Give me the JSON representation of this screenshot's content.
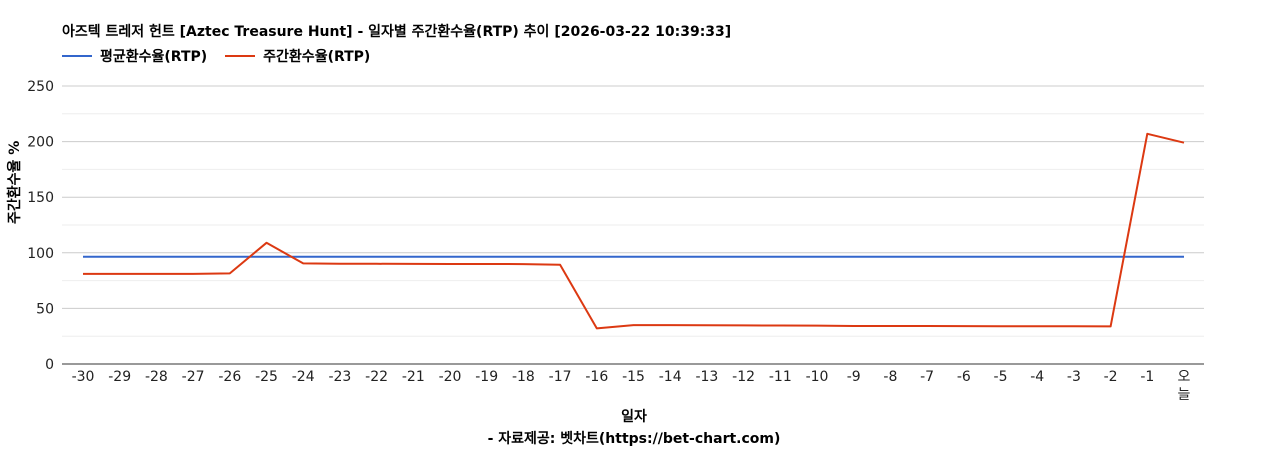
{
  "title": "아즈텍 트레저 헌트 [Aztec Treasure Hunt] - 일자별 주간환수율(RTP) 추이 [2026-03-22 10:39:33]",
  "source": "- 자료제공: 벳차트(https://bet-chart.com)",
  "chart_data": {
    "type": "line",
    "title": "아즈텍 트레저 헌트 [Aztec Treasure Hunt] - 일자별 주간환수율(RTP) 추이 [2026-03-22 10:39:33]",
    "xlabel": "일자",
    "ylabel": "주간환수율 %",
    "ylim": [
      0,
      250
    ],
    "yticks": [
      0,
      50,
      100,
      150,
      200,
      250
    ],
    "grid": true,
    "legend_position": "top-left",
    "categories": [
      "-30",
      "-29",
      "-28",
      "-27",
      "-26",
      "-25",
      "-24",
      "-23",
      "-22",
      "-21",
      "-20",
      "-19",
      "-18",
      "-17",
      "-16",
      "-15",
      "-14",
      "-13",
      "-12",
      "-11",
      "-10",
      "-9",
      "-8",
      "-7",
      "-6",
      "-5",
      "-4",
      "-3",
      "-2",
      "-1",
      "오늘"
    ],
    "series": [
      {
        "name": "평균환수율(RTP)",
        "color": "#3366cc",
        "values": [
          96.5,
          96.5,
          96.5,
          96.5,
          96.5,
          96.5,
          96.5,
          96.5,
          96.5,
          96.5,
          96.5,
          96.5,
          96.5,
          96.5,
          96.5,
          96.5,
          96.5,
          96.5,
          96.5,
          96.5,
          96.5,
          96.5,
          96.5,
          96.5,
          96.5,
          96.5,
          96.5,
          96.5,
          96.5,
          96.5,
          96.5
        ]
      },
      {
        "name": "주간환수율(RTP)",
        "color": "#dc3912",
        "values": [
          81,
          81,
          81,
          81,
          81.5,
          109,
          90.5,
          90.2,
          90.1,
          90,
          89.9,
          89.9,
          89.8,
          89.3,
          32,
          35,
          35,
          34.8,
          34.7,
          34.6,
          34.5,
          34.2,
          34.2,
          34.2,
          34.1,
          33.9,
          33.9,
          33.9,
          33.8,
          207,
          199
        ]
      }
    ]
  }
}
